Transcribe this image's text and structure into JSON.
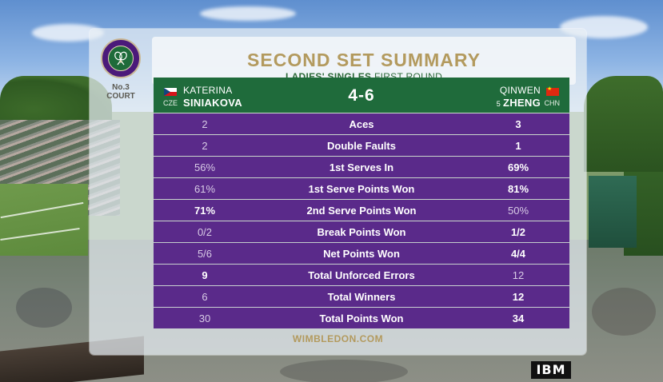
{
  "court": {
    "label_line1": "No.3",
    "label_line2": "COURT"
  },
  "title": "SECOND SET SUMMARY",
  "subtitle": {
    "bold": "LADIES' SINGLES",
    "rest": "FIRST ROUND"
  },
  "match": {
    "score": "4-6",
    "player1": {
      "first": "KATERINA",
      "last": "SINIAKOVA",
      "country": "CZE",
      "seed": ""
    },
    "player2": {
      "first": "QINWEN",
      "last": "ZHENG",
      "country": "CHN",
      "seed": "5"
    }
  },
  "stats": [
    {
      "label": "Aces",
      "p1": "2",
      "p2": "3",
      "leader": "p2"
    },
    {
      "label": "Double Faults",
      "p1": "2",
      "p2": "1",
      "leader": "p2"
    },
    {
      "label": "1st Serves In",
      "p1": "56%",
      "p2": "69%",
      "leader": "p2"
    },
    {
      "label": "1st Serve Points Won",
      "p1": "61%",
      "p2": "81%",
      "leader": "p2"
    },
    {
      "label": "2nd Serve Points Won",
      "p1": "71%",
      "p2": "50%",
      "leader": "p1"
    },
    {
      "label": "Break Points Won",
      "p1": "0/2",
      "p2": "1/2",
      "leader": "p2"
    },
    {
      "label": "Net Points Won",
      "p1": "5/6",
      "p2": "4/4",
      "leader": "p2"
    },
    {
      "label": "Total Unforced Errors",
      "p1": "9",
      "p2": "12",
      "leader": "p1"
    },
    {
      "label": "Total Winners",
      "p1": "6",
      "p2": "12",
      "leader": "p2"
    },
    {
      "label": "Total Points Won",
      "p1": "30",
      "p2": "34",
      "leader": "p2"
    }
  ],
  "footer": "WIMBLEDON.COM",
  "sponsor": "IBM",
  "colors": {
    "gold": "#b39a5e",
    "green": "#1f6b3b",
    "purple": "#5a2a8a"
  },
  "icons": {
    "wimbledon_logo": "crossed-rackets-logo",
    "flag_p1": "czech-flag",
    "flag_p2": "china-flag"
  }
}
